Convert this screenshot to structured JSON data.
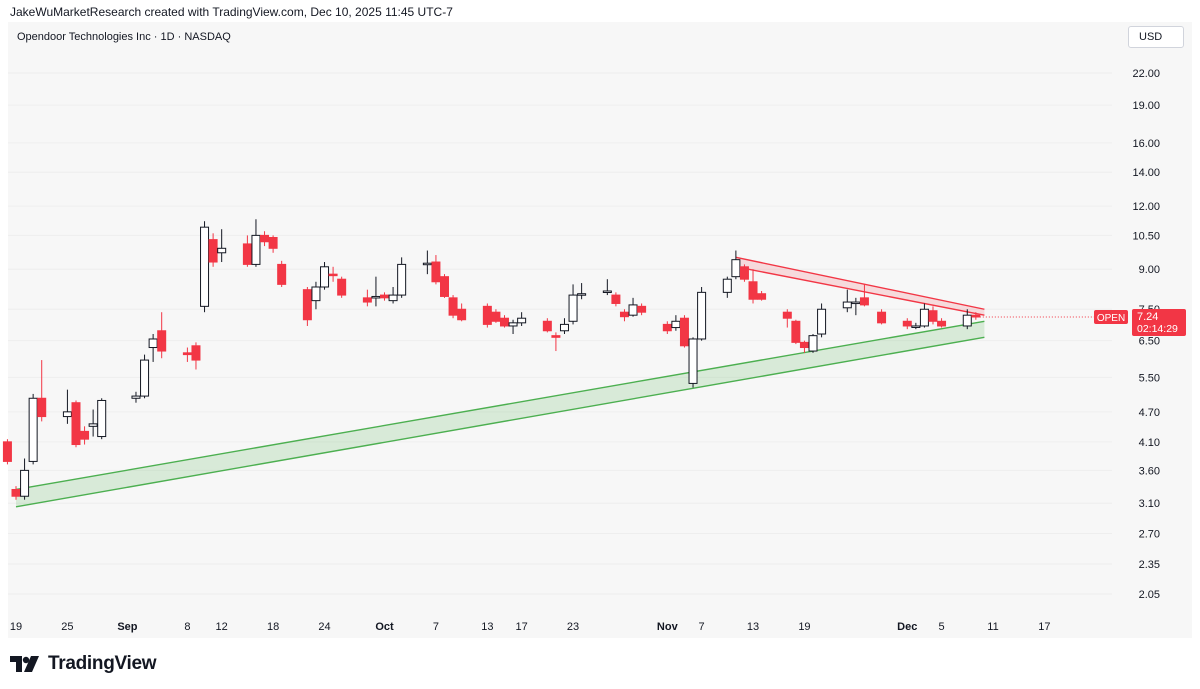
{
  "header": {
    "attribution": "JakeWuMarketResearch created with TradingView.com, Dec 10, 2025 11:45 UTC-7"
  },
  "symbol": {
    "title": "Opendoor Technologies Inc · 1D · NASDAQ",
    "currency_label": "USD",
    "ticker_badge": "OPEN",
    "last_price": "7.24",
    "countdown": "02:14:29"
  },
  "footer": {
    "brand": "TradingView"
  },
  "colors": {
    "up_candle_fill": "#ffffff",
    "up_candle_border": "#131722",
    "down_candle": "#f23645",
    "support_band": "#4caf50",
    "resistance_band": "#f23645",
    "price_badge": "#f23645"
  },
  "chart_data": {
    "type": "candlestick",
    "title": "Opendoor Technologies Inc · 1D · NASDAQ",
    "y_scale": "log",
    "y_ticks": [
      22.0,
      19.0,
      16.0,
      14.0,
      12.0,
      10.5,
      9.0,
      7.5,
      6.5,
      5.5,
      4.7,
      4.1,
      3.6,
      3.1,
      2.7,
      2.35,
      2.05
    ],
    "y_tick_labels": [
      "22.00",
      "19.00",
      "16.00",
      "14.00",
      "12.00",
      "10.50",
      "9.00",
      "7.50",
      "6.50",
      "5.50",
      "4.70",
      "4.10",
      "3.60",
      "3.10",
      "2.70",
      "2.35",
      "2.05"
    ],
    "x_ticks": [
      {
        "label": "19",
        "date": "2025-08-19",
        "bold": false
      },
      {
        "label": "25",
        "date": "2025-08-25",
        "bold": false
      },
      {
        "label": "Sep",
        "date": "2025-09-01",
        "bold": true
      },
      {
        "label": "8",
        "date": "2025-09-08",
        "bold": false
      },
      {
        "label": "12",
        "date": "2025-09-12",
        "bold": false
      },
      {
        "label": "18",
        "date": "2025-09-18",
        "bold": false
      },
      {
        "label": "24",
        "date": "2025-09-24",
        "bold": false
      },
      {
        "label": "Oct",
        "date": "2025-10-01",
        "bold": true
      },
      {
        "label": "7",
        "date": "2025-10-07",
        "bold": false
      },
      {
        "label": "13",
        "date": "2025-10-13",
        "bold": false
      },
      {
        "label": "17",
        "date": "2025-10-17",
        "bold": false
      },
      {
        "label": "23",
        "date": "2025-10-23",
        "bold": false
      },
      {
        "label": "Nov",
        "date": "2025-11-03",
        "bold": true
      },
      {
        "label": "7",
        "date": "2025-11-07",
        "bold": false
      },
      {
        "label": "13",
        "date": "2025-11-13",
        "bold": false
      },
      {
        "label": "19",
        "date": "2025-11-19",
        "bold": false
      },
      {
        "label": "Dec",
        "date": "2025-12-01",
        "bold": true
      },
      {
        "label": "5",
        "date": "2025-12-05",
        "bold": false
      },
      {
        "label": "11",
        "date": "2025-12-11",
        "bold": false
      },
      {
        "label": "17",
        "date": "2025-12-17",
        "bold": false
      }
    ],
    "candles": [
      {
        "date": "2025-08-18",
        "o": 4.1,
        "h": 4.15,
        "l": 3.7,
        "c": 3.75
      },
      {
        "date": "2025-08-19",
        "o": 3.3,
        "h": 3.35,
        "l": 3.15,
        "c": 3.2
      },
      {
        "date": "2025-08-20",
        "o": 3.2,
        "h": 3.8,
        "l": 3.15,
        "c": 3.6
      },
      {
        "date": "2025-08-21",
        "o": 3.75,
        "h": 5.1,
        "l": 3.7,
        "c": 5.0
      },
      {
        "date": "2025-08-22",
        "o": 5.0,
        "h": 5.95,
        "l": 4.5,
        "c": 4.6
      },
      {
        "date": "2025-08-25",
        "o": 4.6,
        "h": 5.2,
        "l": 4.45,
        "c": 4.7
      },
      {
        "date": "2025-08-26",
        "o": 4.9,
        "h": 4.95,
        "l": 4.0,
        "c": 4.05
      },
      {
        "date": "2025-08-27",
        "o": 4.3,
        "h": 4.4,
        "l": 4.05,
        "c": 4.15
      },
      {
        "date": "2025-08-28",
        "o": 4.4,
        "h": 4.75,
        "l": 4.2,
        "c": 4.45
      },
      {
        "date": "2025-08-29",
        "o": 4.2,
        "h": 5.0,
        "l": 4.15,
        "c": 4.95
      },
      {
        "date": "2025-09-02",
        "o": 5.0,
        "h": 5.15,
        "l": 4.9,
        "c": 5.05
      },
      {
        "date": "2025-09-03",
        "o": 5.05,
        "h": 6.1,
        "l": 5.0,
        "c": 5.95
      },
      {
        "date": "2025-09-04",
        "o": 6.3,
        "h": 6.7,
        "l": 5.9,
        "c": 6.55
      },
      {
        "date": "2025-09-05",
        "o": 6.8,
        "h": 7.4,
        "l": 6.0,
        "c": 6.2
      },
      {
        "date": "2025-09-08",
        "o": 6.15,
        "h": 6.3,
        "l": 5.9,
        "c": 6.1
      },
      {
        "date": "2025-09-09",
        "o": 6.35,
        "h": 6.45,
        "l": 5.7,
        "c": 5.95
      },
      {
        "date": "2025-09-10",
        "o": 7.6,
        "h": 11.2,
        "l": 7.4,
        "c": 10.9
      },
      {
        "date": "2025-09-11",
        "o": 10.3,
        "h": 10.6,
        "l": 9.1,
        "c": 9.3
      },
      {
        "date": "2025-09-12",
        "o": 9.7,
        "h": 10.8,
        "l": 9.3,
        "c": 9.9
      },
      {
        "date": "2025-09-15",
        "o": 10.1,
        "h": 10.5,
        "l": 9.1,
        "c": 9.2
      },
      {
        "date": "2025-09-16",
        "o": 9.2,
        "h": 11.3,
        "l": 9.1,
        "c": 10.5
      },
      {
        "date": "2025-09-17",
        "o": 10.5,
        "h": 10.7,
        "l": 10.0,
        "c": 10.2
      },
      {
        "date": "2025-09-18",
        "o": 10.4,
        "h": 10.5,
        "l": 9.7,
        "c": 9.9
      },
      {
        "date": "2025-09-19",
        "o": 9.2,
        "h": 9.35,
        "l": 8.3,
        "c": 8.4
      },
      {
        "date": "2025-09-22",
        "o": 8.2,
        "h": 8.3,
        "l": 6.95,
        "c": 7.15
      },
      {
        "date": "2025-09-23",
        "o": 7.8,
        "h": 8.5,
        "l": 7.5,
        "c": 8.3
      },
      {
        "date": "2025-09-24",
        "o": 8.3,
        "h": 9.3,
        "l": 8.2,
        "c": 9.1
      },
      {
        "date": "2025-09-25",
        "o": 8.8,
        "h": 9.1,
        "l": 8.5,
        "c": 8.75
      },
      {
        "date": "2025-09-26",
        "o": 8.6,
        "h": 8.7,
        "l": 7.9,
        "c": 8.0
      },
      {
        "date": "2025-09-29",
        "o": 7.9,
        "h": 8.2,
        "l": 7.6,
        "c": 7.75
      },
      {
        "date": "2025-09-30",
        "o": 7.95,
        "h": 8.7,
        "l": 7.6,
        "c": 7.95
      },
      {
        "date": "2025-10-01",
        "o": 8.0,
        "h": 8.1,
        "l": 7.8,
        "c": 7.9
      },
      {
        "date": "2025-10-02",
        "o": 7.8,
        "h": 8.3,
        "l": 7.7,
        "c": 8.0
      },
      {
        "date": "2025-10-03",
        "o": 8.0,
        "h": 9.5,
        "l": 7.9,
        "c": 9.2
      },
      {
        "date": "2025-10-06",
        "o": 9.2,
        "h": 9.8,
        "l": 8.8,
        "c": 9.25
      },
      {
        "date": "2025-10-07",
        "o": 9.3,
        "h": 9.6,
        "l": 8.4,
        "c": 8.5
      },
      {
        "date": "2025-10-08",
        "o": 8.7,
        "h": 8.8,
        "l": 7.9,
        "c": 7.95
      },
      {
        "date": "2025-10-09",
        "o": 7.9,
        "h": 8.0,
        "l": 7.2,
        "c": 7.3
      },
      {
        "date": "2025-10-10",
        "o": 7.5,
        "h": 7.7,
        "l": 7.1,
        "c": 7.15
      },
      {
        "date": "2025-10-13",
        "o": 7.6,
        "h": 7.7,
        "l": 6.9,
        "c": 7.0
      },
      {
        "date": "2025-10-14",
        "o": 7.4,
        "h": 7.5,
        "l": 7.05,
        "c": 7.1
      },
      {
        "date": "2025-10-15",
        "o": 7.2,
        "h": 7.3,
        "l": 6.9,
        "c": 6.95
      },
      {
        "date": "2025-10-16",
        "o": 6.95,
        "h": 7.15,
        "l": 6.7,
        "c": 7.05
      },
      {
        "date": "2025-10-17",
        "o": 7.05,
        "h": 7.4,
        "l": 6.95,
        "c": 7.2
      },
      {
        "date": "2025-10-20",
        "o": 7.1,
        "h": 7.2,
        "l": 6.75,
        "c": 6.8
      },
      {
        "date": "2025-10-21",
        "o": 6.65,
        "h": 6.75,
        "l": 6.2,
        "c": 6.6
      },
      {
        "date": "2025-10-22",
        "o": 6.8,
        "h": 7.2,
        "l": 6.7,
        "c": 7.0
      },
      {
        "date": "2025-10-23",
        "o": 7.1,
        "h": 8.4,
        "l": 7.0,
        "c": 8.0
      },
      {
        "date": "2025-10-24",
        "o": 8.0,
        "h": 8.45,
        "l": 7.85,
        "c": 8.05
      },
      {
        "date": "2025-10-27",
        "o": 8.1,
        "h": 8.6,
        "l": 8.0,
        "c": 8.15
      },
      {
        "date": "2025-10-28",
        "o": 8.0,
        "h": 8.1,
        "l": 7.6,
        "c": 7.7
      },
      {
        "date": "2025-10-29",
        "o": 7.4,
        "h": 7.5,
        "l": 7.1,
        "c": 7.25
      },
      {
        "date": "2025-10-30",
        "o": 7.3,
        "h": 7.9,
        "l": 7.25,
        "c": 7.65
      },
      {
        "date": "2025-10-31",
        "o": 7.6,
        "h": 7.7,
        "l": 7.3,
        "c": 7.4
      },
      {
        "date": "2025-11-03",
        "o": 7.0,
        "h": 7.1,
        "l": 6.7,
        "c": 6.8
      },
      {
        "date": "2025-11-04",
        "o": 6.9,
        "h": 7.3,
        "l": 6.8,
        "c": 7.1
      },
      {
        "date": "2025-11-05",
        "o": 7.2,
        "h": 7.3,
        "l": 6.3,
        "c": 6.35
      },
      {
        "date": "2025-11-06",
        "o": 5.35,
        "h": 6.6,
        "l": 5.25,
        "c": 6.55
      },
      {
        "date": "2025-11-07",
        "o": 6.55,
        "h": 8.3,
        "l": 6.5,
        "c": 8.1
      },
      {
        "date": "2025-11-10",
        "o": 8.1,
        "h": 8.7,
        "l": 7.9,
        "c": 8.6
      },
      {
        "date": "2025-11-11",
        "o": 8.7,
        "h": 9.8,
        "l": 8.6,
        "c": 9.4
      },
      {
        "date": "2025-11-12",
        "o": 9.1,
        "h": 9.2,
        "l": 8.5,
        "c": 8.6
      },
      {
        "date": "2025-11-13",
        "o": 8.5,
        "h": 9.0,
        "l": 7.7,
        "c": 7.85
      },
      {
        "date": "2025-11-14",
        "o": 8.05,
        "h": 8.15,
        "l": 7.8,
        "c": 7.85
      },
      {
        "date": "2025-11-17",
        "o": 7.4,
        "h": 7.5,
        "l": 6.9,
        "c": 7.2
      },
      {
        "date": "2025-11-18",
        "o": 7.1,
        "h": 7.15,
        "l": 6.4,
        "c": 6.45
      },
      {
        "date": "2025-11-19",
        "o": 6.45,
        "h": 6.5,
        "l": 6.15,
        "c": 6.3
      },
      {
        "date": "2025-11-20",
        "o": 6.2,
        "h": 6.7,
        "l": 6.15,
        "c": 6.65
      },
      {
        "date": "2025-11-21",
        "o": 6.7,
        "h": 7.7,
        "l": 6.6,
        "c": 7.5
      },
      {
        "date": "2025-11-24",
        "o": 7.55,
        "h": 8.2,
        "l": 7.4,
        "c": 7.75
      },
      {
        "date": "2025-11-25",
        "o": 7.7,
        "h": 7.9,
        "l": 7.3,
        "c": 7.75
      },
      {
        "date": "2025-11-26",
        "o": 7.9,
        "h": 8.4,
        "l": 7.6,
        "c": 7.65
      },
      {
        "date": "2025-11-28",
        "o": 7.4,
        "h": 7.5,
        "l": 7.0,
        "c": 7.05
      },
      {
        "date": "2025-12-01",
        "o": 7.1,
        "h": 7.2,
        "l": 6.85,
        "c": 6.95
      },
      {
        "date": "2025-12-02",
        "o": 6.95,
        "h": 7.05,
        "l": 6.85,
        "c": 6.95
      },
      {
        "date": "2025-12-03",
        "o": 6.95,
        "h": 7.7,
        "l": 6.9,
        "c": 7.5
      },
      {
        "date": "2025-12-04",
        "o": 7.45,
        "h": 7.6,
        "l": 7.0,
        "c": 7.1
      },
      {
        "date": "2025-12-05",
        "o": 7.1,
        "h": 7.2,
        "l": 6.9,
        "c": 6.95
      },
      {
        "date": "2025-12-08",
        "o": 6.95,
        "h": 7.5,
        "l": 6.85,
        "c": 7.3
      },
      {
        "date": "2025-12-09",
        "o": 7.3,
        "h": 7.4,
        "l": 7.15,
        "c": 7.24
      }
    ],
    "support_band": {
      "start": {
        "date": "2025-08-19",
        "upper": 3.3,
        "lower": 3.05
      },
      "end": {
        "date": "2025-12-10",
        "upper": 7.1,
        "lower": 6.6
      }
    },
    "resistance_band": {
      "start": {
        "date": "2025-11-11",
        "upper": 9.5,
        "lower": 9.1
      },
      "end": {
        "date": "2025-12-10",
        "upper": 7.5,
        "lower": 7.3
      }
    }
  }
}
